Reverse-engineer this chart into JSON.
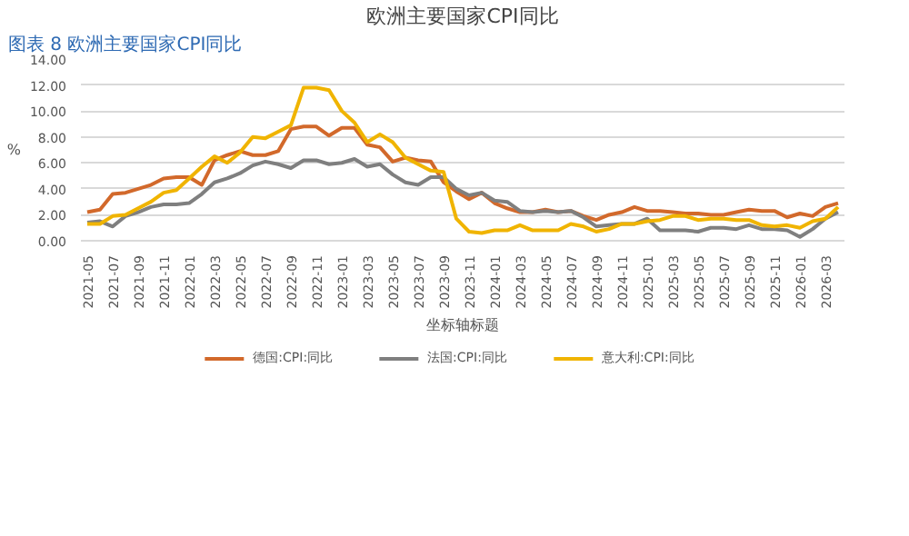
{
  "chart_data": {
    "type": "line",
    "title": "欧洲主要国家CPI同比",
    "xlabel": "坐标轴标题",
    "ylabel": "%",
    "annotations": [
      "图表 8 欧洲主要国家CPI同比"
    ],
    "categories": [
      "2021-05",
      null,
      "2021-07",
      null,
      "2021-09",
      null,
      "2021-11",
      null,
      "2022-01",
      null,
      "2022-03",
      null,
      "2022-05",
      null,
      "2022-07",
      null,
      "2022-09",
      null,
      "2022-11",
      null,
      "2023-01",
      null,
      "2023-03",
      null,
      "2023-05",
      null,
      "2023-07",
      null,
      "2023-09",
      null,
      "2023-11",
      null,
      "2024-01",
      null,
      "2024-03",
      null,
      "2024-05",
      null,
      "2024-07",
      null,
      "2024-09",
      null,
      "2024-11",
      null,
      "2025-01",
      null,
      "2025-03",
      null,
      "2025-05",
      null,
      "2025-07",
      null,
      "2025-09",
      null,
      "2025-11",
      null,
      "2026-01",
      null,
      "2026-03",
      null
    ],
    "series": [
      {
        "name": "德国:CPI:同比",
        "color": "#d2692b",
        "values": [
          2.2,
          2.4,
          3.6,
          3.7,
          4.0,
          4.3,
          4.8,
          4.9,
          4.9,
          4.3,
          6.2,
          6.6,
          6.9,
          6.6,
          6.6,
          6.9,
          8.6,
          8.8,
          8.8,
          8.1,
          8.7,
          8.7,
          7.4,
          7.2,
          6.1,
          6.4,
          6.2,
          6.1,
          4.5,
          3.8,
          3.2,
          3.7,
          2.9,
          2.5,
          2.2,
          2.2,
          2.4,
          2.2,
          2.3,
          1.9,
          1.6,
          2.0,
          2.2,
          2.6,
          2.3,
          2.3,
          2.2,
          2.1,
          2.1,
          2.0,
          2.0,
          2.2,
          2.4,
          2.3,
          2.3,
          1.8,
          2.1,
          1.9,
          2.6,
          2.9
        ]
      },
      {
        "name": "法国:CPI:同比",
        "color": "#7f7f7f",
        "values": [
          1.4,
          1.5,
          1.1,
          1.9,
          2.2,
          2.6,
          2.8,
          2.8,
          2.9,
          3.6,
          4.5,
          4.8,
          5.2,
          5.8,
          6.1,
          5.9,
          5.6,
          6.2,
          6.2,
          5.9,
          6.0,
          6.3,
          5.7,
          5.9,
          5.1,
          4.5,
          4.3,
          4.9,
          4.9,
          4.0,
          3.5,
          3.7,
          3.1,
          3.0,
          2.3,
          2.2,
          2.3,
          2.2,
          2.3,
          1.8,
          1.1,
          1.2,
          1.3,
          1.3,
          1.7,
          0.8,
          0.8,
          0.8,
          0.7,
          1.0,
          1.0,
          0.9,
          1.2,
          0.9,
          0.9,
          0.8,
          0.3,
          0.9,
          1.7,
          2.2
        ]
      },
      {
        "name": "意大利:CPI:同比",
        "color": "#f0b400",
        "values": [
          1.3,
          1.3,
          1.9,
          2.0,
          2.5,
          3.0,
          3.7,
          3.9,
          4.8,
          5.7,
          6.5,
          6.0,
          6.8,
          8.0,
          7.9,
          8.4,
          8.9,
          11.8,
          11.8,
          11.6,
          10.0,
          9.1,
          7.6,
          8.2,
          7.6,
          6.4,
          5.9,
          5.4,
          5.3,
          1.7,
          0.7,
          0.6,
          0.8,
          0.8,
          1.2,
          0.8,
          0.8,
          0.8,
          1.3,
          1.1,
          0.7,
          0.9,
          1.3,
          1.3,
          1.5,
          1.6,
          1.9,
          1.9,
          1.6,
          1.7,
          1.7,
          1.6,
          1.6,
          1.2,
          1.1,
          1.2,
          1.0,
          1.5,
          1.7,
          2.6
        ]
      }
    ],
    "ylim": [
      0,
      14
    ],
    "yticks": [
      {
        "value": 0,
        "label": "0.00"
      },
      {
        "value": 2,
        "label": "2.00"
      },
      {
        "value": 4,
        "label": "4.00"
      },
      {
        "value": 6,
        "label": "6.00"
      },
      {
        "value": 8,
        "label": "8.00"
      },
      {
        "value": 10,
        "label": "10.00"
      },
      {
        "value": 12,
        "label": "12.00"
      },
      {
        "value": 14,
        "label": "14.00"
      }
    ],
    "grid": "y",
    "legend": "bottom",
    "marker": "none",
    "line_style": "solid"
  }
}
